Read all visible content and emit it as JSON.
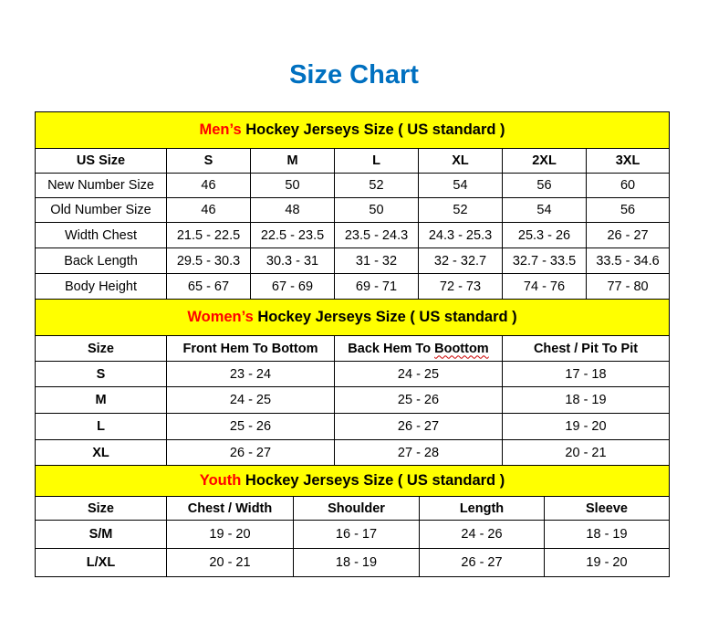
{
  "title": "Size Chart",
  "colors": {
    "title": "#0070c0",
    "band": "#ffff00",
    "highlight": "#ff0000"
  },
  "sections": [
    {
      "highlight": "Men’s",
      "heading": "Hockey Jerseys Size ( US standard )",
      "columns": [
        "US Size",
        "S",
        "M",
        "L",
        "XL",
        "2XL",
        "3XL"
      ],
      "rows": [
        [
          "New Number Size",
          "46",
          "50",
          "52",
          "54",
          "56",
          "60"
        ],
        [
          "Old Number Size",
          "46",
          "48",
          "50",
          "52",
          "54",
          "56"
        ],
        [
          "Width Chest",
          "21.5 - 22.5",
          "22.5 - 23.5",
          "23.5 - 24.3",
          "24.3 - 25.3",
          "25.3 - 26",
          "26 - 27"
        ],
        [
          "Back Length",
          "29.5 - 30.3",
          "30.3 - 31",
          "31 - 32",
          "32 - 32.7",
          "32.7 - 33.5",
          "33.5 - 34.6"
        ],
        [
          "Body Height",
          "65 - 67",
          "67 - 69",
          "69 - 71",
          "72 - 73",
          "74 - 76",
          "77 - 80"
        ]
      ]
    },
    {
      "highlight": "Women’s",
      "heading": "Hockey Jerseys Size ( US standard )",
      "columns": [
        "Size",
        "Front Hem To Bottom",
        "Back Hem To Boottom",
        "Chest / Pit To Pit"
      ],
      "rows": [
        [
          "S",
          "23 - 24",
          "24 - 25",
          "17 - 18"
        ],
        [
          "M",
          "24 - 25",
          "25 - 26",
          "18 - 19"
        ],
        [
          "L",
          "25 - 26",
          "26 - 27",
          "19 - 20"
        ],
        [
          "XL",
          "26 - 27",
          "27 - 28",
          "20 - 21"
        ]
      ]
    },
    {
      "highlight": "Youth",
      "heading": "Hockey Jerseys Size ( US standard )",
      "columns": [
        "Size",
        "Chest / Width",
        "Shoulder",
        "Length",
        "Sleeve"
      ],
      "rows": [
        [
          "S/M",
          "19 - 20",
          "16 - 17",
          "24 - 26",
          "18 - 19"
        ],
        [
          "L/XL",
          "20 - 21",
          "18 - 19",
          "26 - 27",
          "19 - 20"
        ]
      ]
    }
  ]
}
